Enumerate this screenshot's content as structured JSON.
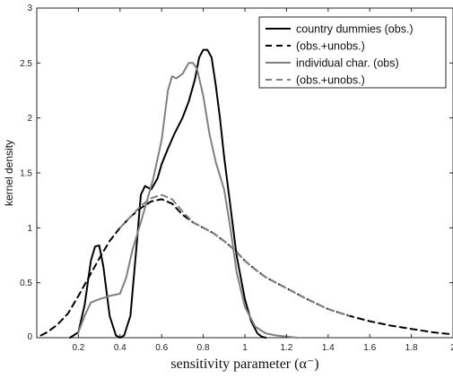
{
  "chart_data": {
    "type": "line",
    "xlabel": "sensitivity parameter (α⁻)",
    "ylabel": "kernel density",
    "xlim": [
      0,
      2
    ],
    "ylim": [
      0,
      3
    ],
    "x_ticks": [
      0.2,
      0.4,
      0.6,
      0.8,
      1,
      1.2,
      1.4,
      1.6,
      1.8,
      2
    ],
    "y_ticks": [
      0,
      0.5,
      1,
      1.5,
      2,
      2.5,
      3
    ],
    "x_tick_labels": [
      "0.2",
      "0.4",
      "0.6",
      "0.8",
      "1",
      "1.2",
      "1.4",
      "1.6",
      "1.8",
      "2"
    ],
    "y_tick_labels": [
      "0",
      "0.5",
      "1",
      "1.5",
      "2",
      "2.5",
      "3"
    ],
    "grid": false,
    "legend_position": "top-right",
    "series": [
      {
        "name": "country dummies  (obs.)",
        "color": "#000000",
        "dash": "solid",
        "x": [
          0.16,
          0.2,
          0.23,
          0.26,
          0.28,
          0.3,
          0.32,
          0.35,
          0.38,
          0.4,
          0.42,
          0.45,
          0.48,
          0.5,
          0.52,
          0.55,
          0.58,
          0.6,
          0.63,
          0.66,
          0.7,
          0.73,
          0.76,
          0.78,
          0.8,
          0.82,
          0.84,
          0.86,
          0.88,
          0.9,
          0.93,
          0.96,
          1.0,
          1.03,
          1.06,
          1.08,
          1.1
        ],
        "values": [
          0.0,
          0.05,
          0.3,
          0.7,
          0.83,
          0.84,
          0.65,
          0.2,
          0.02,
          0.0,
          0.02,
          0.2,
          0.85,
          1.3,
          1.38,
          1.35,
          1.45,
          1.58,
          1.72,
          1.85,
          2.0,
          2.15,
          2.35,
          2.55,
          2.62,
          2.62,
          2.55,
          2.3,
          2.0,
          1.65,
          1.2,
          0.75,
          0.35,
          0.15,
          0.04,
          0.01,
          0.0
        ]
      },
      {
        "name": "(obs.+unobs.)",
        "color": "#000000",
        "dash": "dashed",
        "x": [
          0.02,
          0.05,
          0.1,
          0.15,
          0.2,
          0.25,
          0.3,
          0.35,
          0.4,
          0.45,
          0.5,
          0.55,
          0.6,
          0.65,
          0.7,
          0.75,
          0.8,
          0.85,
          0.9,
          0.95,
          1.0,
          1.05,
          1.1,
          1.2,
          1.3,
          1.4,
          1.5,
          1.6,
          1.7,
          1.8,
          1.9,
          2.0
        ],
        "values": [
          0.02,
          0.05,
          0.12,
          0.22,
          0.38,
          0.55,
          0.72,
          0.88,
          1.0,
          1.1,
          1.18,
          1.24,
          1.26,
          1.22,
          1.12,
          1.05,
          1.0,
          0.95,
          0.88,
          0.8,
          0.7,
          0.62,
          0.55,
          0.45,
          0.35,
          0.26,
          0.2,
          0.15,
          0.11,
          0.08,
          0.05,
          0.03
        ]
      },
      {
        "name": "individual char. (obs)",
        "color": "#808080",
        "dash": "solid",
        "x": [
          0.2,
          0.23,
          0.26,
          0.3,
          0.35,
          0.4,
          0.43,
          0.46,
          0.5,
          0.53,
          0.56,
          0.6,
          0.63,
          0.65,
          0.67,
          0.7,
          0.73,
          0.75,
          0.77,
          0.8,
          0.83,
          0.86,
          0.9,
          0.93,
          0.96,
          1.0,
          1.05,
          1.1,
          1.15,
          1.2,
          1.25
        ],
        "values": [
          0.05,
          0.2,
          0.32,
          0.35,
          0.38,
          0.4,
          0.55,
          0.8,
          1.05,
          1.25,
          1.45,
          1.8,
          2.25,
          2.38,
          2.36,
          2.4,
          2.5,
          2.5,
          2.45,
          2.2,
          1.85,
          1.6,
          1.35,
          1.0,
          0.6,
          0.28,
          0.1,
          0.04,
          0.02,
          0.01,
          0.0
        ]
      },
      {
        "name": "(obs.+unobs.)",
        "color": "#808080",
        "dash": "dashed",
        "x": [
          0.4,
          0.45,
          0.5,
          0.55,
          0.6,
          0.65,
          0.7,
          0.75,
          0.8,
          0.85,
          0.9,
          0.95,
          1.0,
          1.05,
          1.1,
          1.2,
          1.3,
          1.4,
          1.5
        ],
        "values": [
          1.0,
          1.1,
          1.2,
          1.27,
          1.3,
          1.26,
          1.15,
          1.05,
          1.0,
          0.95,
          0.88,
          0.8,
          0.7,
          0.62,
          0.55,
          0.45,
          0.35,
          0.26,
          0.2
        ]
      }
    ]
  }
}
